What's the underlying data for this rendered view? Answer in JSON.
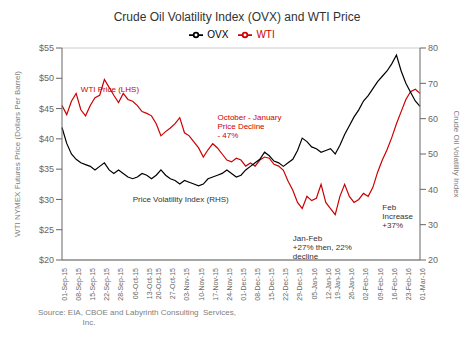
{
  "chart_data": {
    "type": "line",
    "title": "Crude Oil Volatility Index (OVX) and WTI Price",
    "y_label": "WTI NYMEX Futures Price (Dollars Per Barrel)",
    "y2_label": "Crude Oil Volatility Index",
    "source": "Source: EIA, CBOE and Labyrinth Consulting  Services,\n                    Inc.",
    "categories": [
      "01-Sep-15",
      null,
      null,
      "08-Sep-15",
      null,
      null,
      "15-Sep-15",
      null,
      null,
      "22-Sep-15",
      null,
      null,
      "28-Sep-15",
      null,
      null,
      "06-Oct-15",
      null,
      null,
      "13-Oct-15",
      null,
      "20-Oct-15",
      null,
      null,
      "27-Oct-15",
      null,
      null,
      "03-Nov-15",
      null,
      null,
      "10-Nov-15",
      null,
      null,
      "17-Nov-15",
      null,
      null,
      "24-Nov-15",
      null,
      null,
      "01-Dec-15",
      null,
      null,
      "08-Dec-15",
      null,
      null,
      "15-Dec-15",
      null,
      null,
      "22-Dec-15",
      null,
      null,
      "29-Dec-15",
      null,
      null,
      "05-Jan-16",
      null,
      null,
      "12-Jan-16",
      null,
      "19-Jan-16",
      null,
      null,
      "26-Jan-16",
      null,
      null,
      "02-Feb-16",
      null,
      null,
      "09-Feb-16",
      null,
      null,
      "16-Feb-16",
      null,
      null,
      "23-Feb-16",
      null,
      null,
      "01-Mar-16"
    ],
    "series": [
      {
        "name": "WTI",
        "color": "#cc0000",
        "values": [
          45.5,
          44.0,
          46.2,
          47.5,
          44.8,
          43.8,
          45.5,
          46.8,
          47.2,
          49.8,
          48.5,
          47.2,
          46.0,
          47.5,
          46.5,
          46.2,
          45.5,
          44.5,
          44.2,
          43.8,
          42.5,
          40.5,
          41.2,
          41.8,
          42.5,
          43.5,
          41.0,
          40.5,
          39.5,
          38.5,
          37.0,
          38.2,
          39.2,
          38.5,
          37.5,
          36.5,
          36.2,
          36.8,
          36.5,
          35.5,
          36.0,
          35.5,
          36.5,
          37.0,
          36.8,
          35.8,
          35.5,
          34.8,
          33.0,
          31.5,
          29.5,
          28.5,
          30.5,
          29.8,
          30.2,
          32.5,
          29.5,
          28.5,
          27.5,
          30.5,
          32.5,
          30.5,
          29.5,
          30.0,
          31.0,
          30.5,
          32.0,
          34.5,
          36.5,
          38.2,
          40.2,
          42.5,
          44.5,
          46.5,
          47.8,
          48.2,
          47.5
        ]
      },
      {
        "name": "OVX",
        "color": "#000000",
        "axis": "y2",
        "values": [
          57.5,
          53.0,
          50.0,
          48.5,
          47.5,
          47.0,
          46.5,
          45.5,
          46.5,
          47.5,
          45.5,
          44.5,
          45.5,
          44.5,
          43.5,
          43.0,
          43.5,
          44.5,
          44.0,
          43.0,
          44.0,
          45.5,
          44.0,
          43.0,
          42.5,
          41.5,
          42.5,
          42.0,
          41.5,
          41.0,
          41.5,
          43.0,
          43.5,
          44.0,
          44.5,
          45.5,
          44.5,
          43.5,
          44.0,
          45.5,
          46.5,
          47.5,
          48.5,
          50.5,
          49.5,
          48.0,
          47.5,
          46.5,
          47.5,
          48.5,
          51.0,
          54.5,
          53.5,
          52.0,
          51.5,
          50.5,
          51.0,
          51.5,
          50.0,
          52.5,
          55.5,
          58.0,
          60.5,
          62.5,
          65.0,
          66.5,
          68.5,
          70.5,
          72.0,
          73.5,
          75.5,
          78.0,
          73.5,
          70.0,
          67.5,
          65.0,
          63.5
        ]
      }
    ],
    "ylim": [
      20,
      55
    ],
    "yticks": [
      {
        "value": 20,
        "label": "$20"
      },
      {
        "value": 25,
        "label": "$25"
      },
      {
        "value": 30,
        "label": "$30"
      },
      {
        "value": 35,
        "label": "$35"
      },
      {
        "value": 40,
        "label": "$40"
      },
      {
        "value": 45,
        "label": "$45"
      },
      {
        "value": 50,
        "label": "$50"
      },
      {
        "value": 55,
        "label": "$55"
      }
    ],
    "y2lim": [
      20,
      80
    ],
    "y2ticks": [
      20,
      30,
      40,
      50,
      60,
      70,
      80
    ],
    "grid": true,
    "legend": "top",
    "annotations": [
      {
        "text": "WTI Price (LHS)",
        "x": 4,
        "y": 47.8,
        "color": "#cc0000"
      },
      {
        "text": "October - January\nPrice Decline\n- 47%",
        "x": 33,
        "y": 44.5,
        "color": "#cc0000"
      },
      {
        "text": "Price Volatility Index (RHS)",
        "x": 15,
        "y": 29.5,
        "color": "#333333"
      },
      {
        "text": "Jan-Feb\n+27% then, 22%\ndecline",
        "x": 49,
        "y": 24.5,
        "color": "#333333"
      },
      {
        "text": "Feb\nIncrease\n+37%",
        "x": 68,
        "y": 29.5,
        "color": "#333333"
      }
    ]
  }
}
